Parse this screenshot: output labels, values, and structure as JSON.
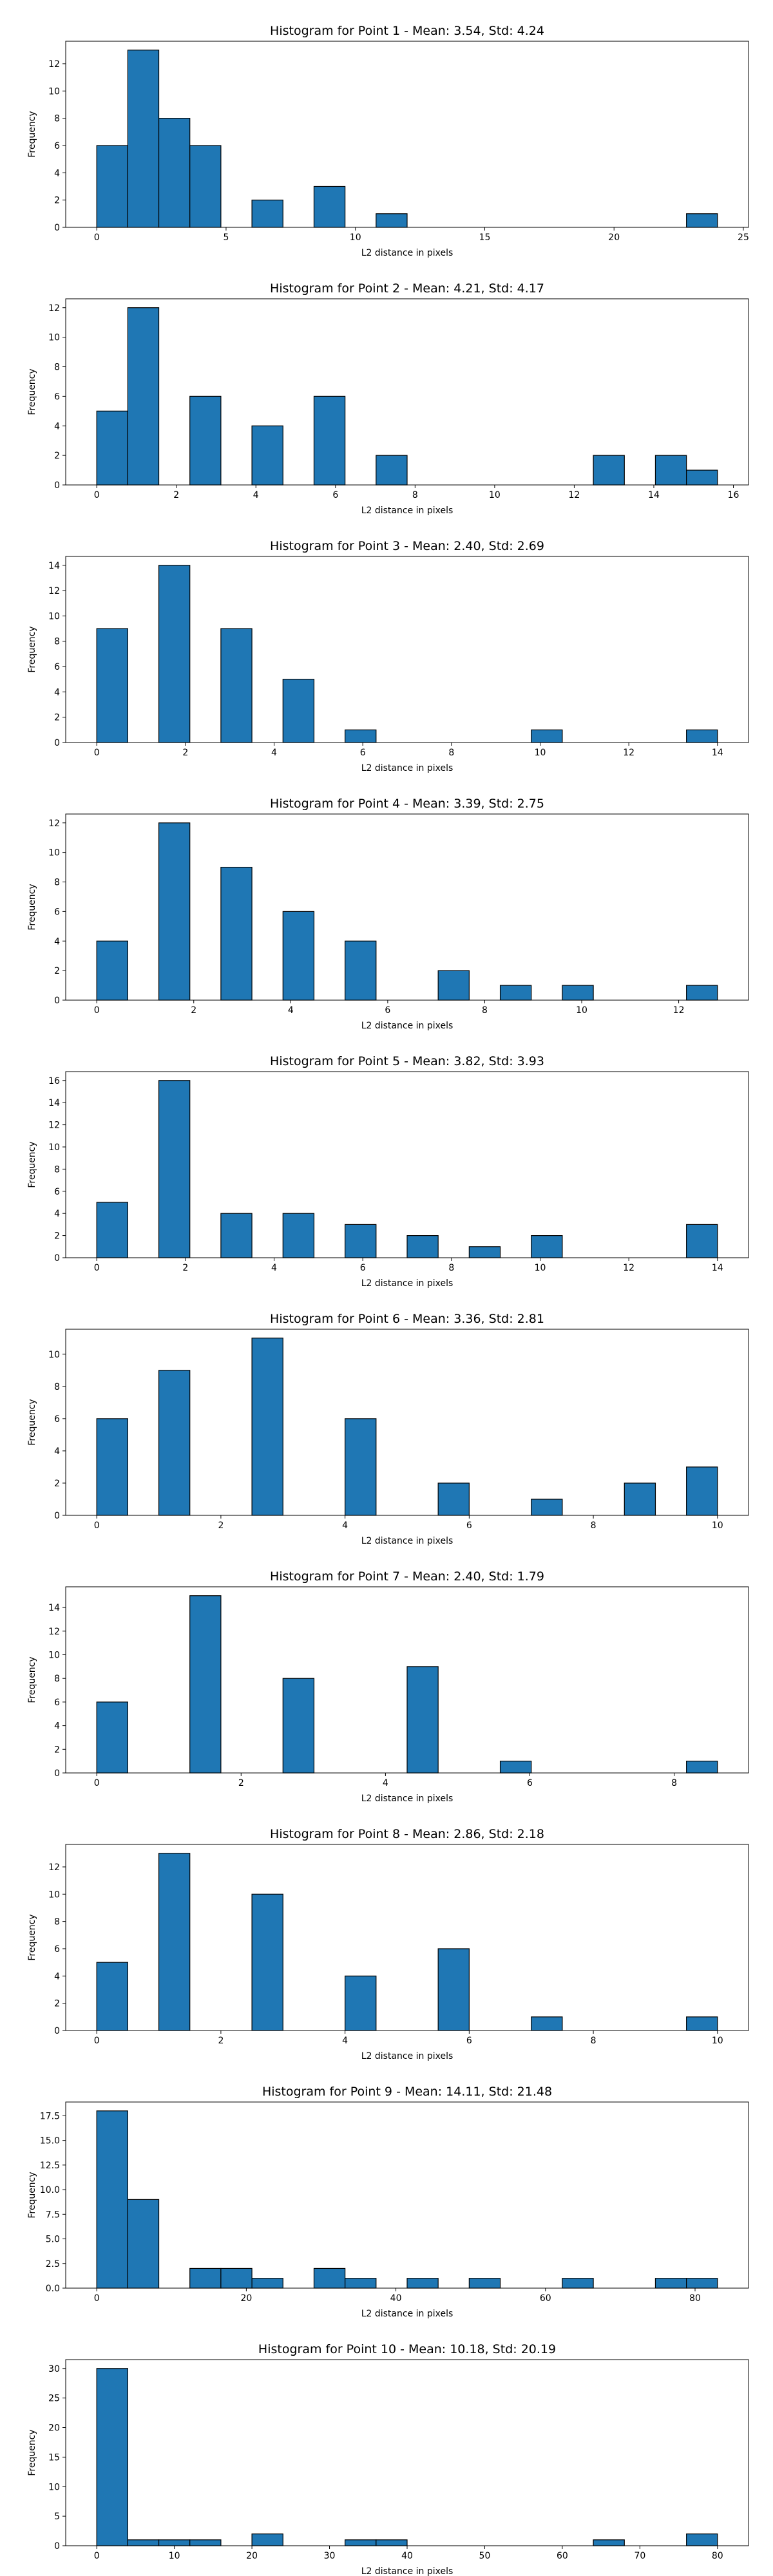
{
  "chart_data": [
    {
      "type": "histogram",
      "title": "Histogram for Point 1 - Mean: 3.54, Std: 4.24",
      "x_label": "L2 distance in pixels",
      "y_label": "Frequency",
      "color": "#1f77b4",
      "edgecolor": "#000000",
      "bins": [
        0,
        1.2,
        2.4,
        3.6,
        4.8,
        6,
        7.2,
        8.4,
        9.6,
        10.8,
        12,
        13.2,
        14.4,
        15.6,
        16.8,
        18,
        19.2,
        20.4,
        21.6,
        22.8,
        24
      ],
      "values": [
        6,
        13,
        8,
        6,
        0,
        2,
        0,
        3,
        0,
        1,
        0,
        0,
        0,
        0,
        0,
        0,
        0,
        0,
        0,
        1
      ],
      "xlim": [
        -1.2,
        25.2
      ],
      "xticks": [
        0,
        5,
        10,
        15,
        20,
        25
      ],
      "ylim": [
        0,
        13.65
      ],
      "yticks": [
        0,
        2,
        4,
        6,
        8,
        10,
        12
      ]
    },
    {
      "type": "histogram",
      "title": "Histogram for Point 2 - Mean: 4.21, Std: 4.17",
      "x_label": "L2 distance in pixels",
      "y_label": "Frequency",
      "color": "#1f77b4",
      "edgecolor": "#000000",
      "bins": [
        0,
        0.78,
        1.56,
        2.34,
        3.12,
        3.9,
        4.68,
        5.46,
        6.24,
        7.02,
        7.8,
        8.58,
        9.36,
        10.14,
        10.92,
        11.7,
        12.48,
        13.26,
        14.04,
        14.82,
        15.6
      ],
      "values": [
        5,
        12,
        0,
        6,
        0,
        4,
        0,
        6,
        0,
        2,
        0,
        0,
        0,
        0,
        0,
        0,
        2,
        0,
        2,
        1
      ],
      "xlim": [
        -0.78,
        16.38
      ],
      "xticks": [
        0,
        2,
        4,
        6,
        8,
        10,
        12,
        14,
        16
      ],
      "ylim": [
        0,
        12.6
      ],
      "yticks": [
        0,
        2,
        4,
        6,
        8,
        10,
        12
      ]
    },
    {
      "type": "histogram",
      "title": "Histogram for Point 3 - Mean: 2.40, Std: 2.69",
      "x_label": "L2 distance in pixels",
      "y_label": "Frequency",
      "color": "#1f77b4",
      "edgecolor": "#000000",
      "bins": [
        0,
        0.7,
        1.4,
        2.1,
        2.8,
        3.5,
        4.2,
        4.9,
        5.6,
        6.3,
        7,
        7.7,
        8.4,
        9.1,
        9.8,
        10.5,
        11.2,
        11.9,
        12.6,
        13.3,
        14
      ],
      "values": [
        9,
        0,
        14,
        0,
        9,
        0,
        5,
        0,
        1,
        0,
        0,
        0,
        0,
        0,
        1,
        0,
        0,
        0,
        0,
        1
      ],
      "xlim": [
        -0.7,
        14.7
      ],
      "xticks": [
        0,
        2,
        4,
        6,
        8,
        10,
        12,
        14
      ],
      "ylim": [
        0,
        14.7
      ],
      "yticks": [
        0,
        2,
        4,
        6,
        8,
        10,
        12,
        14
      ]
    },
    {
      "type": "histogram",
      "title": "Histogram for Point 4 - Mean: 3.39, Std: 2.75",
      "x_label": "L2 distance in pixels",
      "y_label": "Frequency",
      "color": "#1f77b4",
      "edgecolor": "#000000",
      "bins": [
        0,
        0.64,
        1.28,
        1.92,
        2.56,
        3.2,
        3.84,
        4.48,
        5.12,
        5.76,
        6.4,
        7.04,
        7.68,
        8.32,
        8.96,
        9.6,
        10.24,
        10.88,
        11.52,
        12.16,
        12.8
      ],
      "values": [
        4,
        0,
        12,
        0,
        9,
        0,
        6,
        0,
        4,
        0,
        0,
        2,
        0,
        1,
        0,
        1,
        0,
        0,
        0,
        1
      ],
      "xlim": [
        -0.64,
        13.44
      ],
      "xticks": [
        0,
        2,
        4,
        6,
        8,
        10,
        12
      ],
      "ylim": [
        0,
        12.6
      ],
      "yticks": [
        0,
        2,
        4,
        6,
        8,
        10,
        12
      ]
    },
    {
      "type": "histogram",
      "title": "Histogram for Point 5 - Mean: 3.82, Std: 3.93",
      "x_label": "L2 distance in pixels",
      "y_label": "Frequency",
      "color": "#1f77b4",
      "edgecolor": "#000000",
      "bins": [
        0,
        0.7,
        1.4,
        2.1,
        2.8,
        3.5,
        4.2,
        4.9,
        5.6,
        6.3,
        7,
        7.7,
        8.4,
        9.1,
        9.8,
        10.5,
        11.2,
        11.9,
        12.6,
        13.3,
        14
      ],
      "values": [
        5,
        0,
        16,
        0,
        4,
        0,
        4,
        0,
        3,
        0,
        2,
        0,
        1,
        0,
        2,
        0,
        0,
        0,
        0,
        3
      ],
      "xlim": [
        -0.7,
        14.7
      ],
      "xticks": [
        0,
        2,
        4,
        6,
        8,
        10,
        12,
        14
      ],
      "ylim": [
        0,
        16.8
      ],
      "yticks": [
        0,
        2,
        4,
        6,
        8,
        10,
        12,
        14,
        16
      ]
    },
    {
      "type": "histogram",
      "title": "Histogram for Point 6 - Mean: 3.36, Std: 2.81",
      "x_label": "L2 distance in pixels",
      "y_label": "Frequency",
      "color": "#1f77b4",
      "edgecolor": "#000000",
      "bins": [
        0,
        0.5,
        1,
        1.5,
        2,
        2.5,
        3,
        3.5,
        4,
        4.5,
        5,
        5.5,
        6,
        6.5,
        7,
        7.5,
        8,
        8.5,
        9,
        9.5,
        10
      ],
      "values": [
        6,
        0,
        9,
        0,
        0,
        11,
        0,
        0,
        6,
        0,
        0,
        2,
        0,
        0,
        1,
        0,
        0,
        2,
        0,
        3
      ],
      "xlim": [
        -0.5,
        10.5
      ],
      "xticks": [
        0,
        2,
        4,
        6,
        8,
        10
      ],
      "ylim": [
        0,
        11.55
      ],
      "yticks": [
        0,
        2,
        4,
        6,
        8,
        10
      ]
    },
    {
      "type": "histogram",
      "title": "Histogram for Point 7 - Mean: 2.40, Std: 1.79",
      "x_label": "L2 distance in pixels",
      "y_label": "Frequency",
      "color": "#1f77b4",
      "edgecolor": "#000000",
      "bins": [
        0,
        0.43,
        0.86,
        1.29,
        1.72,
        2.15,
        2.58,
        3.01,
        3.44,
        3.87,
        4.3,
        4.73,
        5.16,
        5.59,
        6.02,
        6.45,
        6.88,
        7.31,
        7.74,
        8.17,
        8.6
      ],
      "values": [
        6,
        0,
        0,
        15,
        0,
        0,
        8,
        0,
        0,
        0,
        9,
        0,
        0,
        1,
        0,
        0,
        0,
        0,
        0,
        1
      ],
      "xlim": [
        -0.43,
        9.03
      ],
      "xticks": [
        0,
        2,
        4,
        6,
        8
      ],
      "ylim": [
        0,
        15.75
      ],
      "yticks": [
        0,
        2,
        4,
        6,
        8,
        10,
        12,
        14
      ]
    },
    {
      "type": "histogram",
      "title": "Histogram for Point 8 - Mean: 2.86, Std: 2.18",
      "x_label": "L2 distance in pixels",
      "y_label": "Frequency",
      "color": "#1f77b4",
      "edgecolor": "#000000",
      "bins": [
        0,
        0.5,
        1,
        1.5,
        2,
        2.5,
        3,
        3.5,
        4,
        4.5,
        5,
        5.5,
        6,
        6.5,
        7,
        7.5,
        8,
        8.5,
        9,
        9.5,
        10
      ],
      "values": [
        5,
        0,
        13,
        0,
        0,
        10,
        0,
        0,
        4,
        0,
        0,
        6,
        0,
        0,
        1,
        0,
        0,
        0,
        0,
        1
      ],
      "xlim": [
        -0.5,
        10.5
      ],
      "xticks": [
        0,
        2,
        4,
        6,
        8,
        10
      ],
      "ylim": [
        0,
        13.65
      ],
      "yticks": [
        0,
        2,
        4,
        6,
        8,
        10,
        12
      ]
    },
    {
      "type": "histogram",
      "title": "Histogram for Point 9 - Mean: 14.11, Std: 21.48",
      "x_label": "L2 distance in pixels",
      "y_label": "Frequency",
      "color": "#1f77b4",
      "edgecolor": "#000000",
      "bins": [
        0,
        4.15,
        8.3,
        12.45,
        16.6,
        20.75,
        24.9,
        29.05,
        33.2,
        37.35,
        41.5,
        45.65,
        49.8,
        53.95,
        58.1,
        62.25,
        66.4,
        70.55,
        74.7,
        78.85,
        83
      ],
      "values": [
        18,
        9,
        0,
        2,
        2,
        1,
        0,
        2,
        1,
        0,
        1,
        0,
        1,
        0,
        0,
        1,
        0,
        0,
        1,
        1
      ],
      "xlim": [
        -4.15,
        87.15
      ],
      "xticks": [
        0,
        20,
        40,
        60,
        80
      ],
      "ylim": [
        0,
        18.9
      ],
      "yticks": [
        {
          "value": 0,
          "label": "0.0"
        },
        {
          "value": 2.5,
          "label": "2.5"
        },
        {
          "value": 5,
          "label": "5.0"
        },
        {
          "value": 7.5,
          "label": "7.5"
        },
        {
          "value": 10,
          "label": "10.0"
        },
        {
          "value": 12.5,
          "label": "12.5"
        },
        {
          "value": 15,
          "label": "15.0"
        },
        {
          "value": 17.5,
          "label": "17.5"
        }
      ]
    },
    {
      "type": "histogram",
      "title": "Histogram for Point 10 - Mean: 10.18, Std: 20.19",
      "x_label": "L2 distance in pixels",
      "y_label": "Frequency",
      "color": "#1f77b4",
      "edgecolor": "#000000",
      "bins": [
        0,
        4,
        8,
        12,
        16,
        20,
        24,
        28,
        32,
        36,
        40,
        44,
        48,
        52,
        56,
        60,
        64,
        68,
        72,
        76,
        80
      ],
      "values": [
        30,
        1,
        1,
        1,
        0,
        2,
        0,
        0,
        1,
        1,
        0,
        0,
        0,
        0,
        0,
        0,
        1,
        0,
        0,
        2
      ],
      "xlim": [
        -4,
        84
      ],
      "xticks": [
        0,
        10,
        20,
        30,
        40,
        50,
        60,
        70,
        80
      ],
      "ylim": [
        0,
        31.5
      ],
      "yticks": [
        0,
        5,
        10,
        15,
        20,
        25,
        30
      ]
    }
  ]
}
